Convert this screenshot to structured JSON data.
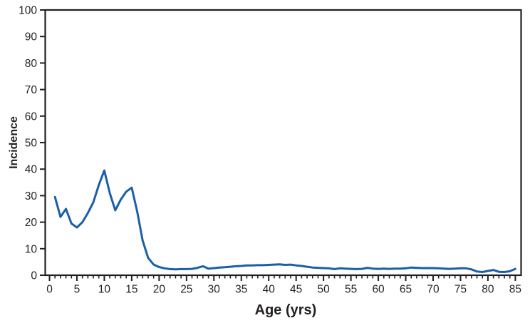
{
  "figure": {
    "background": "#ffffff",
    "axis_color": "#231f20",
    "text_color": "#231f20"
  },
  "chart_data": {
    "type": "line",
    "title": "",
    "xlabel": "Age (yrs)",
    "ylabel": "Incidence",
    "grid": false,
    "legend": false,
    "frame": "full-box",
    "xlim": [
      0,
      85
    ],
    "ylim": [
      0,
      100
    ],
    "x_axis": {
      "min": 0,
      "max": 85,
      "minor_tick_step": 1,
      "major_tick_step": 5,
      "tick_labels": [
        "0",
        "5",
        "10",
        "15",
        "20",
        "25",
        "30",
        "35",
        "40",
        "45",
        "50",
        "55",
        "60",
        "65",
        "70",
        "75",
        "80",
        "85"
      ]
    },
    "y_axis": {
      "min": 0,
      "max": 100,
      "major_tick_step": 10,
      "tick_labels": [
        "0",
        "10",
        "20",
        "30",
        "40",
        "50",
        "60",
        "70",
        "80",
        "90",
        "100"
      ]
    },
    "series": [
      {
        "name": "incidence-by-age",
        "color": "#1a5fa8",
        "x": [
          1,
          2,
          3,
          4,
          5,
          6,
          7,
          8,
          9,
          10,
          11,
          12,
          13,
          14,
          15,
          16,
          17,
          18,
          19,
          20,
          21,
          22,
          23,
          24,
          25,
          26,
          27,
          28,
          29,
          30,
          31,
          32,
          33,
          34,
          35,
          36,
          37,
          38,
          39,
          40,
          41,
          42,
          43,
          44,
          45,
          46,
          47,
          48,
          49,
          50,
          51,
          52,
          53,
          54,
          55,
          56,
          57,
          58,
          59,
          60,
          61,
          62,
          63,
          64,
          65,
          66,
          67,
          68,
          69,
          70,
          71,
          72,
          73,
          74,
          75,
          76,
          77,
          78,
          79,
          80,
          81,
          82,
          83,
          84,
          85
        ],
        "values": [
          29.5,
          22,
          25,
          19.5,
          18,
          20,
          23.5,
          27.5,
          34,
          39.5,
          31,
          24.5,
          28.5,
          31.5,
          33,
          24,
          13,
          6.5,
          4,
          3.1,
          2.6,
          2.3,
          2.2,
          2.3,
          2.3,
          2.4,
          2.8,
          3.4,
          2.5,
          2.7,
          2.9,
          3.0,
          3.2,
          3.4,
          3.5,
          3.7,
          3.7,
          3.8,
          3.8,
          3.9,
          4.0,
          4.1,
          3.9,
          4.0,
          3.7,
          3.5,
          3.2,
          2.9,
          2.8,
          2.7,
          2.6,
          2.3,
          2.6,
          2.5,
          2.4,
          2.3,
          2.4,
          2.8,
          2.5,
          2.4,
          2.5,
          2.4,
          2.5,
          2.5,
          2.6,
          2.9,
          2.8,
          2.7,
          2.7,
          2.7,
          2.6,
          2.5,
          2.4,
          2.5,
          2.6,
          2.6,
          2.2,
          1.4,
          1.2,
          1.6,
          2.0,
          1.3,
          1.2,
          1.5,
          2.4
        ]
      }
    ]
  }
}
